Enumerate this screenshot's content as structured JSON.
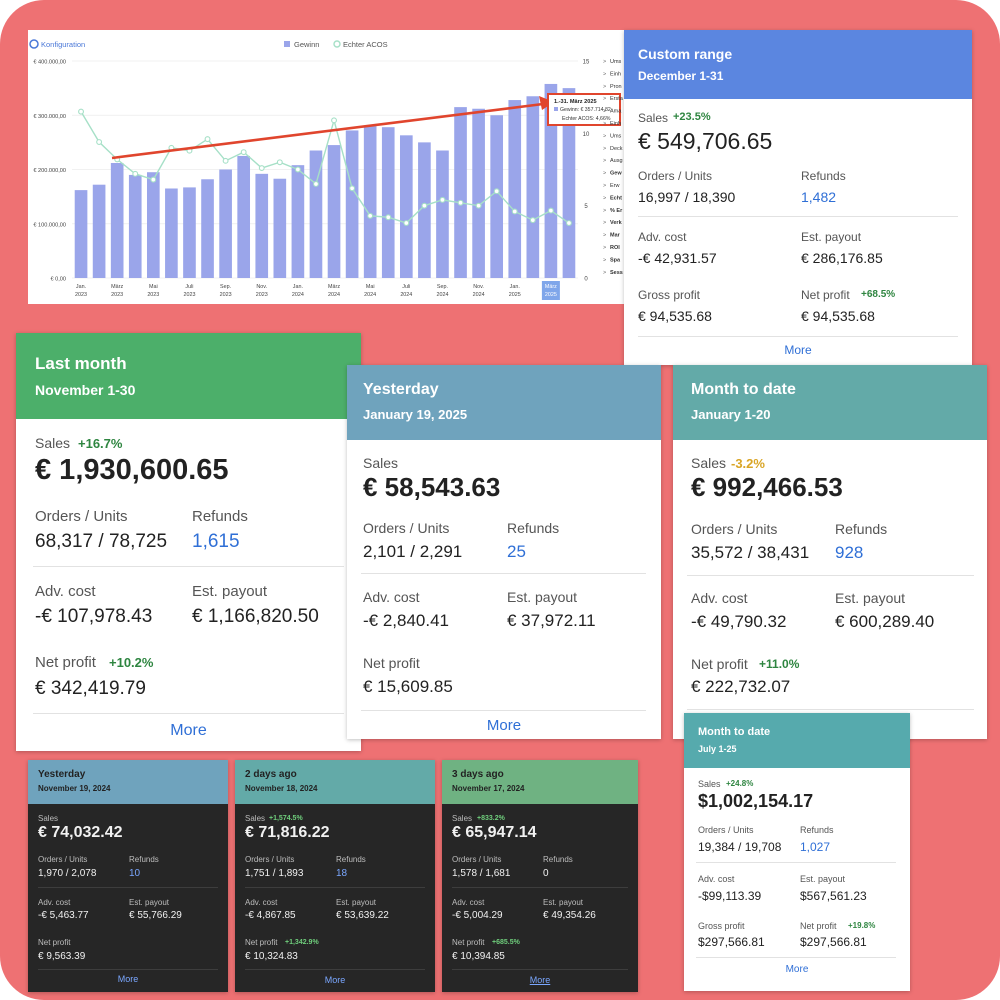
{
  "chart": {
    "config_label": "Konfiguration",
    "legend": [
      "Gewinn",
      "Echter ACOS"
    ],
    "y_left_ticks": [
      "€ 400.000,00",
      "€ 300.000,00",
      "€ 200.000,00",
      "€ 100.000,00",
      "€ 0,00"
    ],
    "y_right_ticks": [
      "15",
      "10",
      "5",
      "0"
    ],
    "x_labels": [
      [
        "Jan.",
        "2023"
      ],
      [
        "März",
        "2023"
      ],
      [
        "Mai",
        "2023"
      ],
      [
        "Juli",
        "2023"
      ],
      [
        "Sep.",
        "2023"
      ],
      [
        "Nov.",
        "2023"
      ],
      [
        "Jan.",
        "2024"
      ],
      [
        "März",
        "2024"
      ],
      [
        "Mai",
        "2024"
      ],
      [
        "Juli",
        "2024"
      ],
      [
        "Sep.",
        "2024"
      ],
      [
        "Nov.",
        "2024"
      ],
      [
        "Jan.",
        "2025"
      ],
      [
        "März",
        "2025"
      ]
    ],
    "tooltip": {
      "title": "1.-31. März 2025",
      "line1": "Gewinn: € 357.714,82",
      "line2": "Echter ACOS: 4,66%"
    },
    "side_items": [
      "Ums",
      "Einh",
      "Pron",
      "Ersta",
      "Ama",
      "Einh",
      "Ums",
      "Deck",
      "Ausg",
      "Gew",
      "Erw",
      "Echt",
      "% Er",
      "Verk",
      "Mar",
      "ROI",
      "Spa",
      "Sess"
    ]
  },
  "chart_data": {
    "type": "bar",
    "series": [
      {
        "name": "Gewinn",
        "values": [
          162000,
          172000,
          212000,
          190000,
          195000,
          165000,
          167000,
          182000,
          200000,
          225000,
          192000,
          183000,
          208000,
          235000,
          245000,
          272000,
          280000,
          278000,
          263000,
          250000,
          235000,
          315000,
          312000,
          300000,
          328000,
          335000,
          357715,
          350000
        ]
      },
      {
        "name": "Echter ACOS",
        "values": [
          11.5,
          9.4,
          8.2,
          7.2,
          6.8,
          9.0,
          8.8,
          9.6,
          8.1,
          8.7,
          7.6,
          8.0,
          7.5,
          6.5,
          10.9,
          6.2,
          4.3,
          4.2,
          3.8,
          5.0,
          5.4,
          5.2,
          5.0,
          6.0,
          4.6,
          4.0,
          4.66,
          3.8
        ]
      }
    ],
    "ylim": [
      0,
      400000
    ],
    "y2lim": [
      0,
      15
    ]
  },
  "custom": {
    "title": "Custom range",
    "subtitle": "December 1-31",
    "sales_label": "Sales",
    "sales_pct": "+23.5%",
    "sales": "€ 549,706.65",
    "orders_label": "Orders / Units",
    "orders": "16,997 / 18,390",
    "refunds_label": "Refunds",
    "refunds": "1,482",
    "adv_label": "Adv. cost",
    "adv": "-€ 42,931.57",
    "payout_label": "Est. payout",
    "payout": "€ 286,176.85",
    "gross_label": "Gross profit",
    "gross": "€ 94,535.68",
    "net_label": "Net profit",
    "net_pct": "+68.5%",
    "net": "€ 94,535.68",
    "more": "More"
  },
  "last_month": {
    "title": "Last month",
    "subtitle": "November 1-30",
    "sales_label": "Sales",
    "sales_pct": "+16.7%",
    "sales": "€ 1,930,600.65",
    "orders_label": "Orders / Units",
    "orders": "68,317 / 78,725",
    "refunds_label": "Refunds",
    "refunds": "1,615",
    "adv_label": "Adv. cost",
    "adv": "-€ 107,978.43",
    "payout_label": "Est. payout",
    "payout": "€ 1,166,820.50",
    "net_label": "Net profit",
    "net_pct": "+10.2%",
    "net": "€ 342,419.79",
    "more": "More"
  },
  "yesterday": {
    "title": "Yesterday",
    "subtitle": "January 19, 2025",
    "sales_label": "Sales",
    "sales": "€ 58,543.63",
    "orders_label": "Orders / Units",
    "orders": "2,101 / 2,291",
    "refunds_label": "Refunds",
    "refunds": "25",
    "adv_label": "Adv. cost",
    "adv": "-€ 2,840.41",
    "payout_label": "Est. payout",
    "payout": "€ 37,972.11",
    "net_label": "Net profit",
    "net": "€ 15,609.85",
    "more": "More"
  },
  "mtd": {
    "title": "Month to date",
    "subtitle": "January 1-20",
    "sales_label": "Sales",
    "sales_pct": "-3.2%",
    "sales": "€ 992,466.53",
    "orders_label": "Orders / Units",
    "orders": "35,572 / 38,431",
    "refunds_label": "Refunds",
    "refunds": "928",
    "adv_label": "Adv. cost",
    "adv": "-€ 49,790.32",
    "payout_label": "Est. payout",
    "payout": "€ 600,289.40",
    "net_label": "Net profit",
    "net_pct": "+11.0%",
    "net": "€ 222,732.07"
  },
  "dark": [
    {
      "title": "Yesterday",
      "subtitle": "November 19, 2024",
      "sales_label": "Sales",
      "sales_pct": "",
      "sales": "€ 74,032.42",
      "orders_label": "Orders / Units",
      "orders": "1,970 / 2,078",
      "refunds_label": "Refunds",
      "refunds": "10",
      "adv_label": "Adv. cost",
      "adv": "-€ 5,463.77",
      "payout_label": "Est. payout",
      "payout": "€ 55,766.29",
      "net_label": "Net profit",
      "net_pct": "",
      "net": "€ 9,563.39",
      "more": "More"
    },
    {
      "title": "2 days ago",
      "subtitle": "November 18, 2024",
      "sales_label": "Sales",
      "sales_pct": "+1,574.5%",
      "sales": "€ 71,816.22",
      "orders_label": "Orders / Units",
      "orders": "1,751 / 1,893",
      "refunds_label": "Refunds",
      "refunds": "18",
      "adv_label": "Adv. cost",
      "adv": "-€ 4,867.85",
      "payout_label": "Est. payout",
      "payout": "€ 53,639.22",
      "net_label": "Net profit",
      "net_pct": "+1,342.9%",
      "net": "€ 10,324.83",
      "more": "More"
    },
    {
      "title": "3 days ago",
      "subtitle": "November 17, 2024",
      "sales_label": "Sales",
      "sales_pct": "+833.2%",
      "sales": "€ 65,947.14",
      "orders_label": "Orders / Units",
      "orders": "1,578 / 1,681",
      "refunds_label": "Refunds",
      "refunds": "0",
      "adv_label": "Adv. cost",
      "adv": "-€ 5,004.29",
      "payout_label": "Est. payout",
      "payout": "€ 49,354.26",
      "net_label": "Net profit",
      "net_pct": "+685.5%",
      "net": "€ 10,394.85",
      "more": "More"
    }
  ],
  "mtd_small": {
    "title": "Month to date",
    "subtitle": "July 1-25",
    "sales_label": "Sales",
    "sales_pct": "+24.8%",
    "sales": "$1,002,154.17",
    "orders_label": "Orders / Units",
    "orders": "19,384 / 19,708",
    "refunds_label": "Refunds",
    "refunds": "1,027",
    "adv_label": "Adv. cost",
    "adv": "-$99,113.39",
    "payout_label": "Est. payout",
    "payout": "$567,561.23",
    "gross_label": "Gross profit",
    "gross": "$297,566.81",
    "net_label": "Net profit",
    "net_pct": "+19.8%",
    "net": "$297,566.81",
    "more": "More"
  },
  "colors": {
    "frame": "#ee7173",
    "custom_header": "#5b86e0",
    "last_header": "#4caf6a",
    "yesterday_header": "#6fa3bd",
    "mtd_header": "#63aaa8",
    "bar": "#9aa5ea",
    "acos_line": "#a6e0c7",
    "arrow": "#e0452d"
  }
}
